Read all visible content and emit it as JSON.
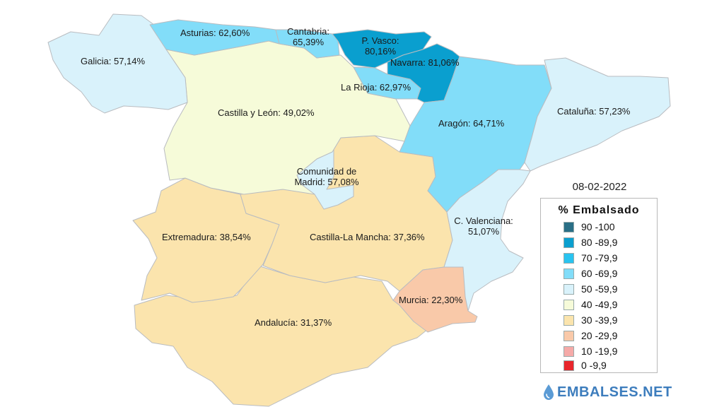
{
  "date": "08-02-2022",
  "legend": {
    "title": "% Embalsado",
    "items": [
      {
        "label": "90 -100",
        "color": "#2a6f86"
      },
      {
        "label": "80 -89,9",
        "color": "#0a9fcf"
      },
      {
        "label": "70 -79,9",
        "color": "#28c3f0"
      },
      {
        "label": "60 -69,9",
        "color": "#82ddf9"
      },
      {
        "label": "50 -59,9",
        "color": "#d9f2fb"
      },
      {
        "label": "40 -49,9",
        "color": "#f6fbd9"
      },
      {
        "label": "30 -39,9",
        "color": "#fbe4ad"
      },
      {
        "label": "20 -29,9",
        "color": "#f9c9a9"
      },
      {
        "label": "10 -19,9",
        "color": "#f5aaa8"
      },
      {
        "label": "0 -9,9",
        "color": "#e8262c"
      }
    ]
  },
  "regions": {
    "galicia": {
      "label": "Galicia: 57,14%",
      "value": 57.14,
      "color": "#d9f2fb"
    },
    "asturias": {
      "label": "Asturias: 62,60%",
      "value": 62.6,
      "color": "#82ddf9"
    },
    "cantabria": {
      "label1": "Cantabria:",
      "label2": "65,39%",
      "value": 65.39,
      "color": "#82ddf9"
    },
    "pvasco": {
      "label1": "P. Vasco:",
      "label2": "80,16%",
      "value": 80.16,
      "color": "#0a9fcf"
    },
    "navarra": {
      "label": "Navarra: 81,06%",
      "value": 81.06,
      "color": "#0a9fcf"
    },
    "larioja": {
      "label": "La Rioja: 62,97%",
      "value": 62.97,
      "color": "#82ddf9"
    },
    "castillaleon": {
      "label": "Castilla y León: 49,02%",
      "value": 49.02,
      "color": "#f6fbd9"
    },
    "aragon": {
      "label": "Aragón: 64,71%",
      "value": 64.71,
      "color": "#82ddf9"
    },
    "cataluna": {
      "label": "Cataluña: 57,23%",
      "value": 57.23,
      "color": "#d9f2fb"
    },
    "madrid": {
      "label1": "Comunidad de",
      "label2": "Madrid: 57,08%",
      "value": 57.08,
      "color": "#d9f2fb"
    },
    "valenciana": {
      "label1": "C. Valenciana:",
      "label2": "51,07%",
      "value": 51.07,
      "color": "#d9f2fb"
    },
    "extremadura": {
      "label": "Extremadura: 38,54%",
      "value": 38.54,
      "color": "#fbe4ad"
    },
    "castillamancha": {
      "label": "Castilla-La Mancha: 37,36%",
      "value": 37.36,
      "color": "#fbe4ad"
    },
    "murcia": {
      "label": "Murcia: 22,30%",
      "value": 22.3,
      "color": "#f9c9a9"
    },
    "andalucia": {
      "label": "Andalucía: 31,37%",
      "value": 31.37,
      "color": "#fbe4ad"
    }
  },
  "brand": {
    "text": "EMBALSES.NET",
    "icon": "water-drop-icon"
  }
}
